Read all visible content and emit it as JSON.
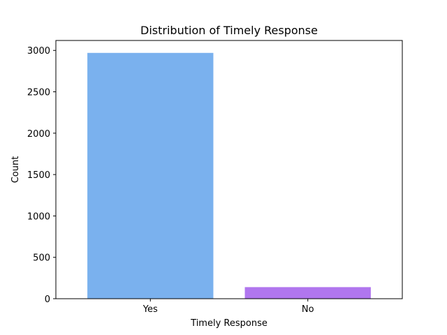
{
  "chart_data": {
    "type": "bar",
    "title": "Distribution of Timely Response",
    "xlabel": "Timely Response",
    "ylabel": "Count",
    "categories": [
      "Yes",
      "No"
    ],
    "values": [
      2970,
      140
    ],
    "colors": [
      "#7ab1ee",
      "#b076ee"
    ],
    "ylim": [
      0,
      3120
    ],
    "yticks": [
      0,
      500,
      1000,
      1500,
      2000,
      2500,
      3000
    ],
    "ytick_labels": [
      "0",
      "500",
      "1000",
      "1500",
      "2000",
      "2500",
      "3000"
    ],
    "grid": false,
    "legend": "none"
  }
}
